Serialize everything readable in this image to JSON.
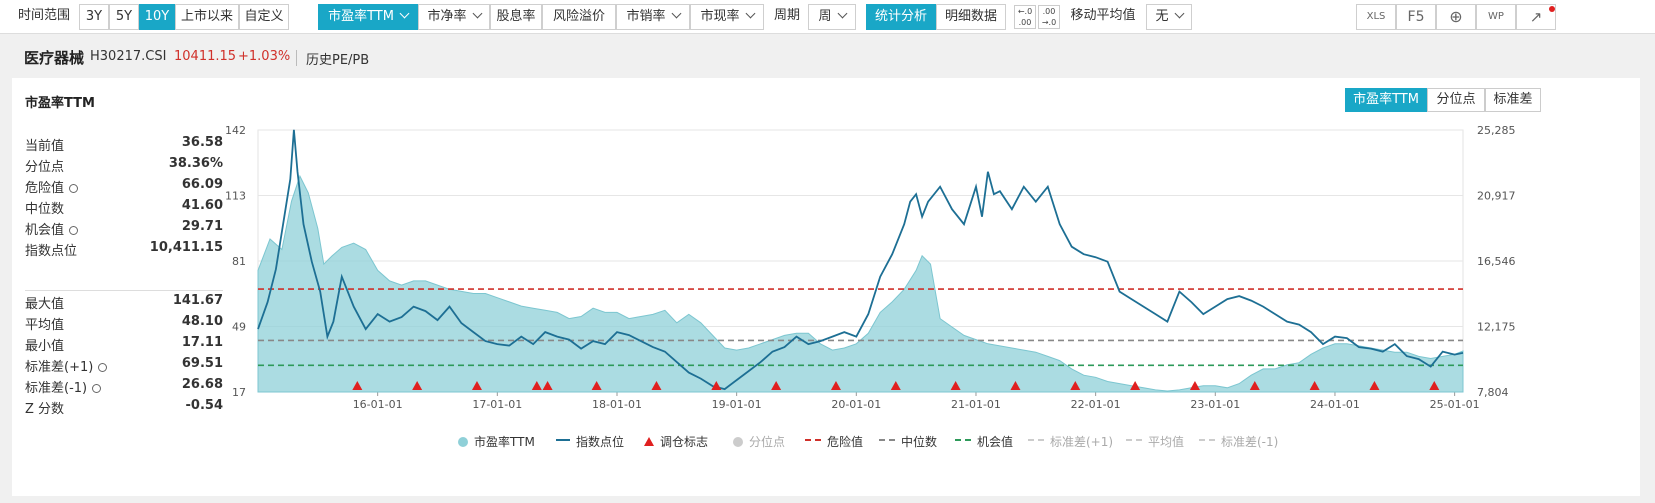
{
  "toolbar": {
    "time_range_label": "时间范围",
    "ranges": [
      "3Y",
      "5Y",
      "10Y",
      "上市以来",
      "自定义"
    ],
    "metrics": [
      "市盈率TTM",
      "市净率",
      "股息率",
      "风险溢价",
      "市销率",
      "市现率"
    ],
    "period_label": "周期",
    "period_value": "周",
    "view_tabs": [
      "统计分析",
      "明细数据"
    ],
    "decimal_inc": [
      "←.0",
      ".00"
    ],
    "decimal_dec": [
      ".00",
      "→.0"
    ],
    "ma_label": "移动平均值",
    "ma_value": "无",
    "right_icons": [
      "XLS",
      "F5",
      "⊕",
      "WP",
      "↗"
    ]
  },
  "header": {
    "index_name": "医疗器械",
    "index_code": "H30217.CSI",
    "index_value": "10411.15",
    "index_change": "+1.03%",
    "link": "历史PE/PB"
  },
  "panel": {
    "title": "市盈率TTM",
    "right_tabs": [
      "市盈率TTM",
      "分位点",
      "标准差"
    ]
  },
  "stats_top": [
    {
      "label": "当前值",
      "value": "36.58",
      "gear": false
    },
    {
      "label": "分位点",
      "value": "38.36%",
      "gear": false
    },
    {
      "label": "危险值",
      "value": "66.09",
      "gear": true
    },
    {
      "label": "中位数",
      "value": "41.60",
      "gear": false
    },
    {
      "label": "机会值",
      "value": "29.71",
      "gear": true
    },
    {
      "label": "指数点位",
      "value": "10,411.15",
      "gear": false
    }
  ],
  "stats_bottom": [
    {
      "label": "最大值",
      "value": "141.67",
      "gear": false
    },
    {
      "label": "平均值",
      "value": "48.10",
      "gear": false
    },
    {
      "label": "最小值",
      "value": "17.11",
      "gear": false
    },
    {
      "label": "标准差(+1)",
      "value": "69.51",
      "gear": true
    },
    {
      "label": "标准差(-1)",
      "value": "26.68",
      "gear": true
    },
    {
      "label": "Z 分数",
      "value": "-0.54",
      "gear": false
    }
  ],
  "legend": [
    {
      "label": "市盈率TTM",
      "kind": "area",
      "color": "#8fd0d8",
      "dim": false
    },
    {
      "label": "指数点位",
      "kind": "line",
      "color": "#1d6f94",
      "dim": false
    },
    {
      "label": "调仓标志",
      "kind": "tri",
      "color": "#e02020",
      "dim": false
    },
    {
      "label": "分位点",
      "kind": "dot",
      "color": "#cccccc",
      "dim": true
    },
    {
      "label": "危险值",
      "kind": "dash",
      "color": "#d0302a",
      "dim": false
    },
    {
      "label": "中位数",
      "kind": "dash",
      "color": "#888888",
      "dim": false
    },
    {
      "label": "机会值",
      "kind": "dash",
      "color": "#2e9a5a",
      "dim": false
    },
    {
      "label": "标准差(+1)",
      "kind": "dash",
      "color": "#cccccc",
      "dim": true
    },
    {
      "label": "平均值",
      "kind": "dash",
      "color": "#cccccc",
      "dim": true
    },
    {
      "label": "标准差(-1)",
      "kind": "dash",
      "color": "#cccccc",
      "dim": true
    }
  ],
  "chart_data": {
    "type": "area",
    "x_ticks": [
      "16-01-01",
      "17-01-01",
      "18-01-01",
      "19-01-01",
      "20-01-01",
      "21-01-01",
      "22-01-01",
      "23-01-01",
      "24-01-01",
      "25-01-01"
    ],
    "x_range": [
      2015.0,
      2025.07
    ],
    "yleft_ticks": [
      "142",
      "113",
      "81",
      "49",
      "17"
    ],
    "yleft_range": [
      17,
      142
    ],
    "yright_ticks": [
      "25,285",
      "20,917",
      "16,546",
      "12,175",
      "7,804"
    ],
    "yright_range": [
      7804,
      25285
    ],
    "ref_lines": {
      "danger": 66.09,
      "median": 41.6,
      "opportunity": 29.71
    },
    "ref_colors": {
      "danger": "#d0302a",
      "median": "#888888",
      "opportunity": "#2e9a5a"
    },
    "series_pe": {
      "name": "市盈率TTM",
      "color": "#8fd0d8",
      "x": [
        2015.0,
        2015.1,
        2015.2,
        2015.28,
        2015.35,
        2015.42,
        2015.5,
        2015.55,
        2015.62,
        2015.7,
        2015.8,
        2015.9,
        2016.0,
        2016.1,
        2016.2,
        2016.3,
        2016.4,
        2016.5,
        2016.6,
        2016.7,
        2016.8,
        2016.9,
        2017.0,
        2017.1,
        2017.2,
        2017.3,
        2017.4,
        2017.5,
        2017.6,
        2017.7,
        2017.8,
        2017.9,
        2018.0,
        2018.1,
        2018.2,
        2018.3,
        2018.4,
        2018.5,
        2018.6,
        2018.7,
        2018.8,
        2018.9,
        2019.0,
        2019.1,
        2019.2,
        2019.3,
        2019.4,
        2019.5,
        2019.6,
        2019.7,
        2019.8,
        2019.9,
        2020.0,
        2020.1,
        2020.2,
        2020.3,
        2020.4,
        2020.5,
        2020.55,
        2020.62,
        2020.7,
        2020.8,
        2020.9,
        2021.0,
        2021.1,
        2021.2,
        2021.3,
        2021.4,
        2021.5,
        2021.6,
        2021.7,
        2021.8,
        2021.9,
        2022.0,
        2022.1,
        2022.2,
        2022.3,
        2022.4,
        2022.5,
        2022.6,
        2022.7,
        2022.8,
        2022.9,
        2023.0,
        2023.1,
        2023.2,
        2023.3,
        2023.4,
        2023.5,
        2023.6,
        2023.7,
        2023.8,
        2023.9,
        2024.0,
        2024.1,
        2024.2,
        2024.3,
        2024.4,
        2024.5,
        2024.6,
        2024.7,
        2024.8,
        2024.9,
        2025.0,
        2025.07
      ],
      "values": [
        75,
        90,
        85,
        108,
        120,
        112,
        95,
        78,
        82,
        86,
        88,
        85,
        75,
        70,
        68,
        70,
        70,
        68,
        66,
        65,
        64,
        64,
        62,
        60,
        58,
        57,
        56,
        55,
        52,
        53,
        57,
        55,
        55,
        52,
        53,
        54,
        56,
        50,
        54,
        50,
        44,
        38,
        37,
        38,
        40,
        42,
        44,
        45,
        45,
        40,
        37,
        38,
        40,
        45,
        55,
        60,
        66,
        75,
        82,
        78,
        52,
        48,
        44,
        42,
        40,
        39,
        38,
        37,
        36,
        34,
        32,
        28,
        25,
        24,
        22,
        21,
        20,
        19,
        18,
        17.5,
        18,
        19,
        20,
        20,
        19,
        21,
        25,
        28,
        28,
        30,
        31,
        35,
        38,
        40,
        40,
        39,
        38,
        37,
        36,
        36,
        34,
        33,
        34,
        35,
        36.58
      ]
    },
    "series_index": {
      "name": "指数点位",
      "color": "#1d6f94",
      "x": [
        2015.0,
        2015.08,
        2015.15,
        2015.22,
        2015.27,
        2015.3,
        2015.33,
        2015.38,
        2015.45,
        2015.52,
        2015.58,
        2015.63,
        2015.7,
        2015.8,
        2015.9,
        2016.0,
        2016.1,
        2016.2,
        2016.3,
        2016.4,
        2016.5,
        2016.6,
        2016.7,
        2016.8,
        2016.9,
        2017.0,
        2017.1,
        2017.2,
        2017.3,
        2017.4,
        2017.5,
        2017.6,
        2017.7,
        2017.8,
        2017.9,
        2018.0,
        2018.1,
        2018.2,
        2018.3,
        2018.4,
        2018.5,
        2018.6,
        2018.7,
        2018.8,
        2018.9,
        2019.0,
        2019.1,
        2019.2,
        2019.3,
        2019.4,
        2019.5,
        2019.6,
        2019.7,
        2019.8,
        2019.9,
        2020.0,
        2020.1,
        2020.2,
        2020.3,
        2020.4,
        2020.45,
        2020.5,
        2020.55,
        2020.6,
        2020.7,
        2020.8,
        2020.9,
        2021.0,
        2021.05,
        2021.1,
        2021.15,
        2021.2,
        2021.3,
        2021.4,
        2021.5,
        2021.6,
        2021.7,
        2021.8,
        2021.9,
        2022.0,
        2022.1,
        2022.2,
        2022.3,
        2022.4,
        2022.5,
        2022.6,
        2022.7,
        2022.8,
        2022.9,
        2023.0,
        2023.1,
        2023.2,
        2023.3,
        2023.4,
        2023.5,
        2023.6,
        2023.7,
        2023.8,
        2023.9,
        2024.0,
        2024.1,
        2024.2,
        2024.3,
        2024.4,
        2024.5,
        2024.6,
        2024.7,
        2024.8,
        2024.9,
        2025.0,
        2025.07
      ],
      "values": [
        12000,
        13800,
        16000,
        19500,
        22000,
        25300,
        22500,
        19000,
        16500,
        14500,
        11500,
        12500,
        15500,
        13500,
        12000,
        13000,
        12500,
        12800,
        13500,
        13200,
        12600,
        13500,
        12400,
        11800,
        11200,
        11000,
        10900,
        11500,
        11000,
        11800,
        11500,
        11300,
        10700,
        11200,
        11000,
        11800,
        11600,
        11200,
        10800,
        10500,
        9800,
        9100,
        8700,
        8200,
        8000,
        8600,
        9200,
        9800,
        10500,
        10800,
        11500,
        11000,
        11200,
        11500,
        11800,
        11500,
        13000,
        15500,
        17000,
        19000,
        20500,
        21000,
        19500,
        20500,
        21500,
        20000,
        19000,
        21500,
        19500,
        22500,
        21000,
        21200,
        20000,
        21500,
        20500,
        21500,
        19000,
        17500,
        17000,
        16800,
        16500,
        14500,
        14000,
        13500,
        13000,
        12500,
        14500,
        13800,
        13000,
        13500,
        14000,
        14200,
        13900,
        13500,
        13000,
        12500,
        12300,
        11800,
        11000,
        11500,
        11400,
        10800,
        10700,
        10500,
        11000,
        10200,
        10000,
        9500,
        10500,
        10300,
        10411.15
      ]
    },
    "rebalance_x": [
      2015.83,
      2016.33,
      2016.83,
      2017.33,
      2017.42,
      2017.83,
      2018.33,
      2018.83,
      2019.33,
      2019.83,
      2020.33,
      2020.83,
      2021.33,
      2021.83,
      2022.33,
      2022.83,
      2023.33,
      2023.83,
      2024.33,
      2024.83
    ]
  }
}
